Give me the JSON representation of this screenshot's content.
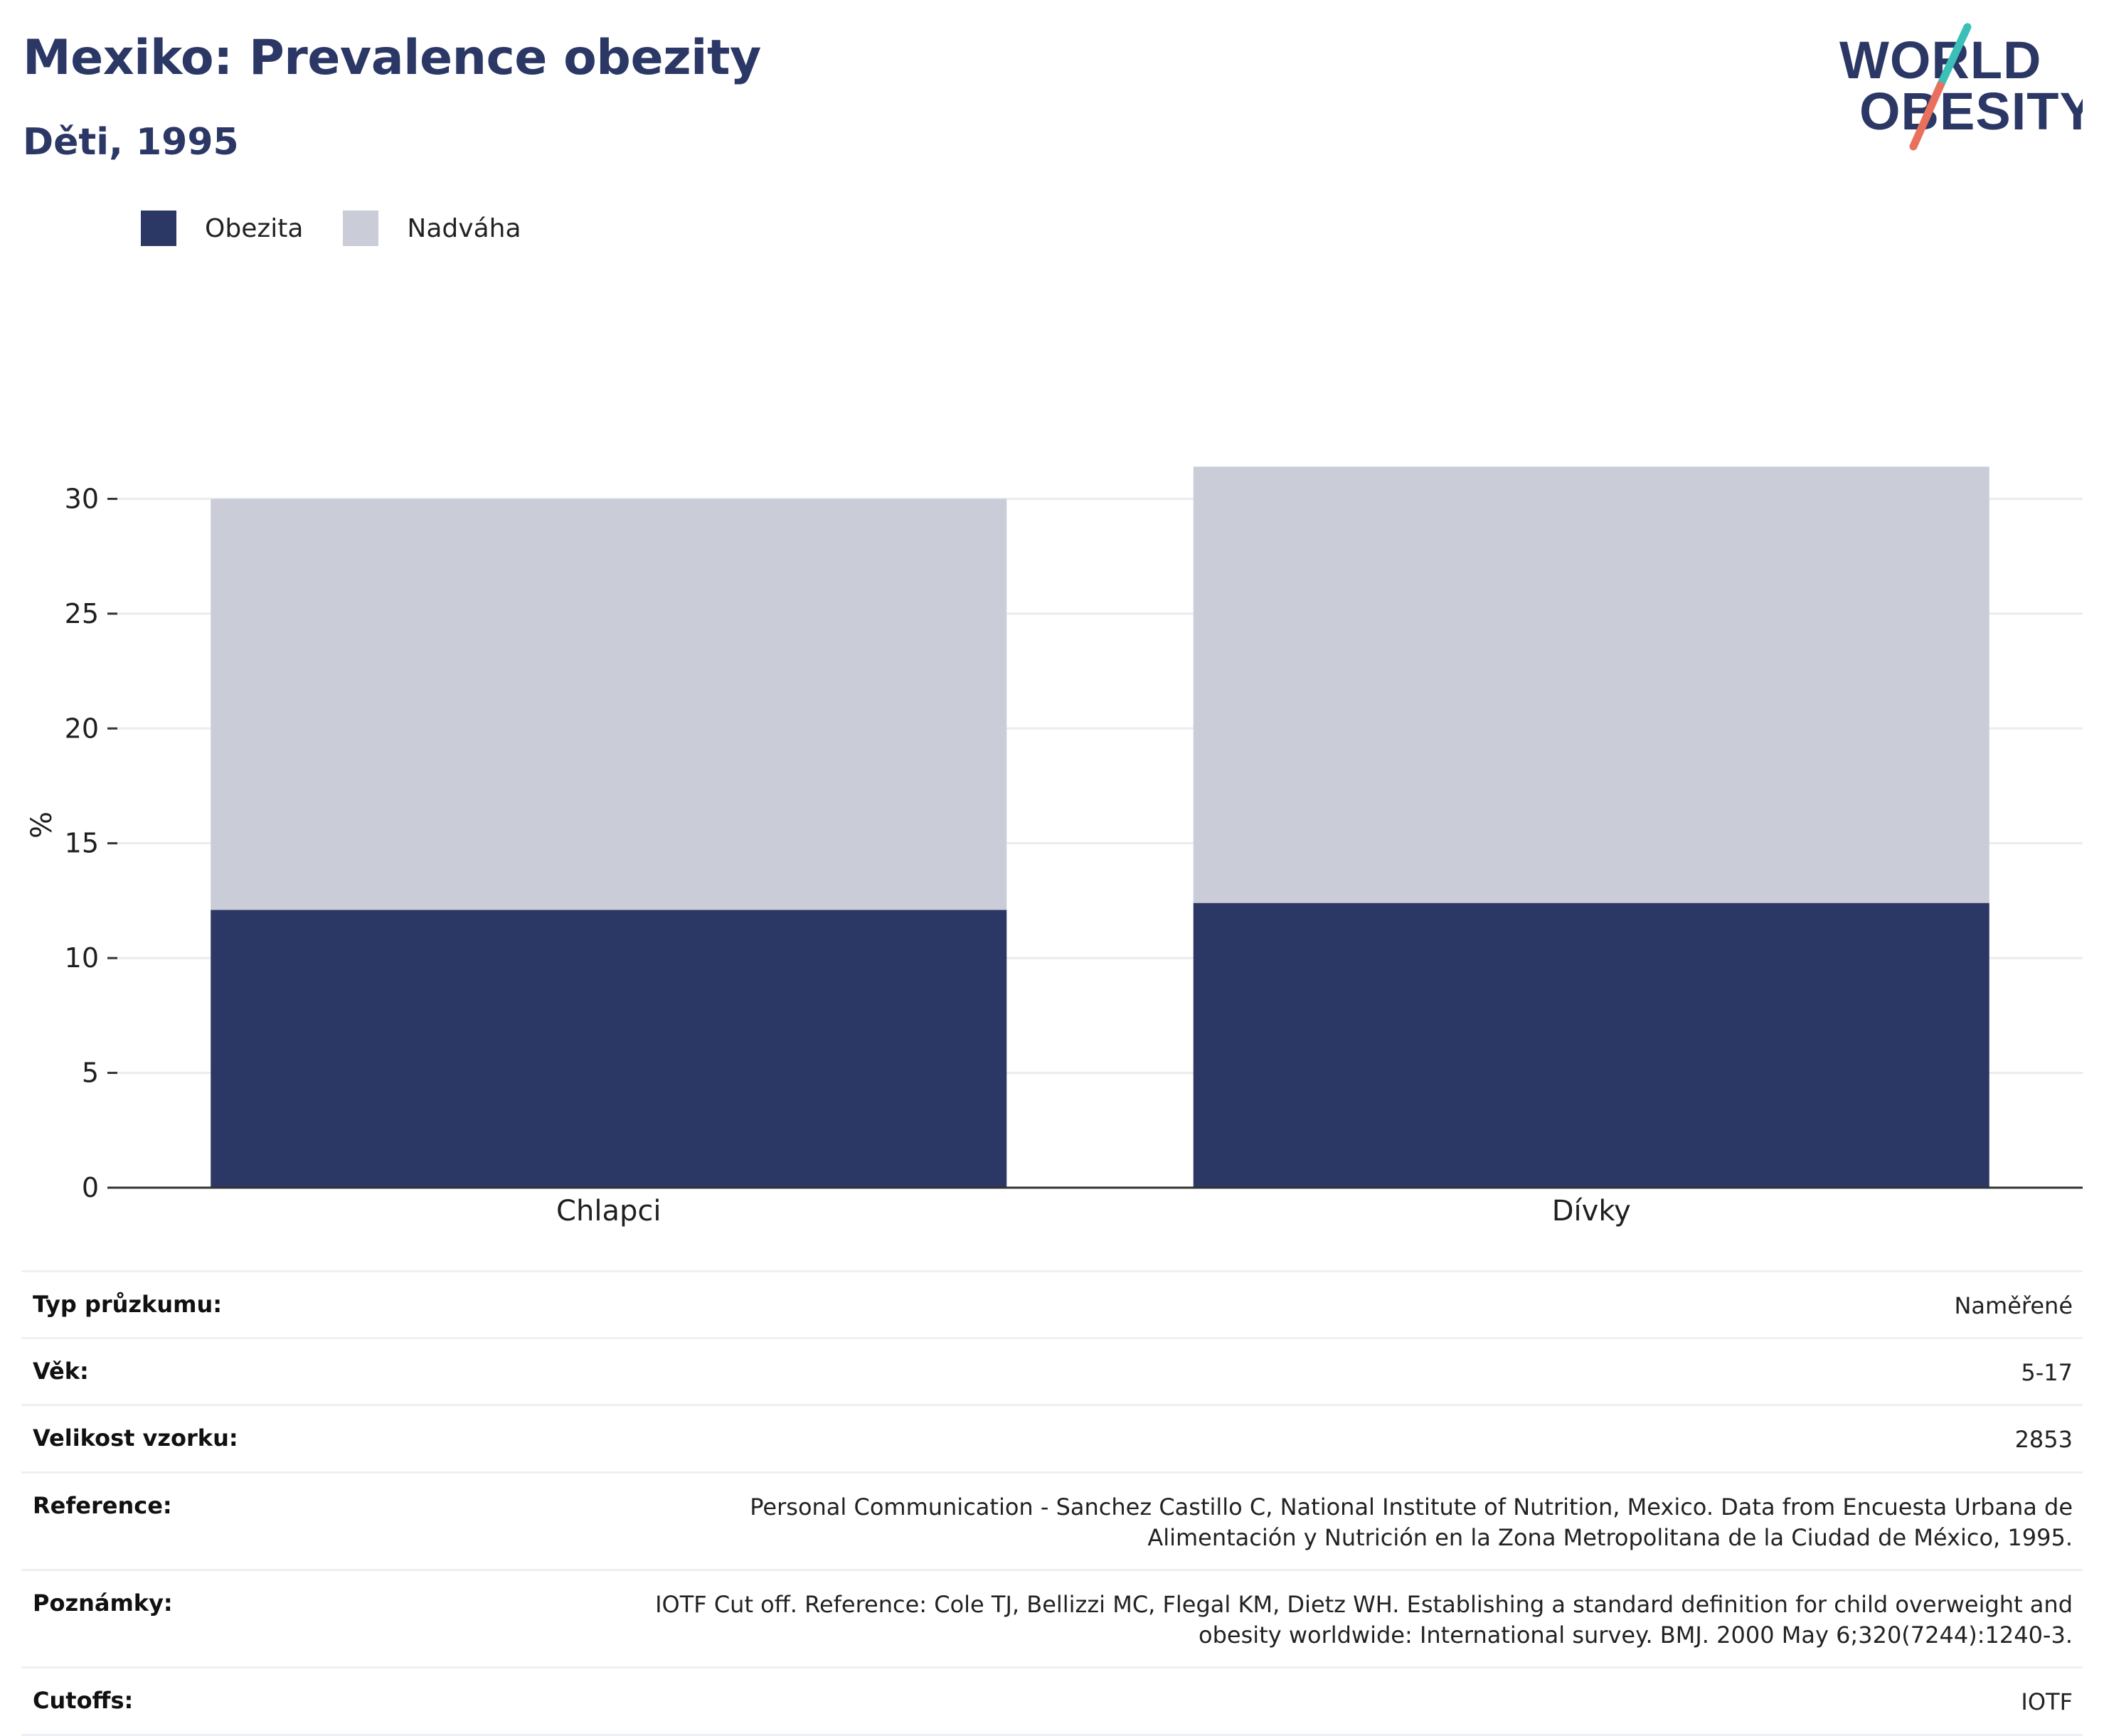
{
  "header": {
    "title": "Mexiko: Prevalence obezity",
    "subtitle": "Děti, 1995"
  },
  "logo": {
    "line1": "WORLD",
    "line2": "OBESITY",
    "colors": {
      "text": "#2b3765",
      "slash_top": "#3bbfb7",
      "slash_bottom": "#e8705d"
    }
  },
  "legend": {
    "items": [
      {
        "label": "Obezita",
        "color": "#2b3765"
      },
      {
        "label": "Nadváha",
        "color": "#cacdd8"
      }
    ]
  },
  "chart_data": {
    "type": "bar",
    "stacked": true,
    "categories": [
      "Chlapci",
      "Dívky"
    ],
    "series": [
      {
        "name": "Obezita",
        "values": [
          12.1,
          12.4
        ],
        "color": "#2b3765"
      },
      {
        "name": "Nadváha",
        "values": [
          17.9,
          19.0
        ],
        "color": "#cacdd8"
      }
    ],
    "title": "Mexiko: Prevalence obezity",
    "subtitle": "Děti, 1995",
    "xlabel": "",
    "ylabel": "%",
    "ylim": [
      0,
      35
    ],
    "yticks": [
      0,
      5,
      10,
      15,
      20,
      25,
      30
    ],
    "grid": true,
    "legend_position": "top-left"
  },
  "info": {
    "rows": [
      {
        "label": "Typ průzkumu:",
        "value": "Naměřené"
      },
      {
        "label": "Věk:",
        "value": "5-17"
      },
      {
        "label": "Velikost vzorku:",
        "value": "2853"
      },
      {
        "label": "Reference:",
        "value": "Personal Communication - Sanchez Castillo C, National Institute of Nutrition, Mexico. Data from Encuesta Urbana de Alimentación y Nutrición en la Zona Metropolitana de la Ciudad de México, 1995."
      },
      {
        "label": "Poznámky:",
        "value": "IOTF Cut off. Reference: Cole TJ, Bellizzi MC, Flegal KM, Dietz WH. Establishing a standard definition for child overweight and obesity worldwide: International survey. BMJ. 2000 May 6;320(7244):1240-3."
      },
      {
        "label": "Cutoffs:",
        "value": "IOTF"
      }
    ]
  }
}
